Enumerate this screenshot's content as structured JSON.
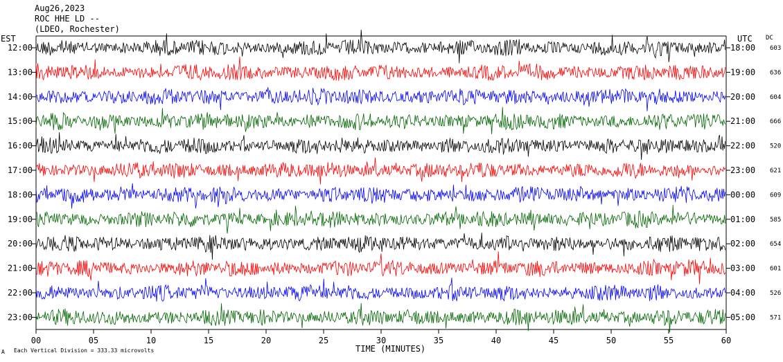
{
  "header": {
    "date": "Aug26,2023",
    "station": "ROC HHE LD --",
    "network": "(LDEO, Rochester)"
  },
  "chart_data": {
    "type": "line",
    "title": "",
    "xlabel": "TIME (MINUTES)",
    "left_axis_label": "EST",
    "right_axis_label": "UTC",
    "dc_label": "DC",
    "xlim": [
      0,
      60
    ],
    "x_ticks": [
      "00",
      "05",
      "10",
      "15",
      "20",
      "25",
      "30",
      "35",
      "40",
      "45",
      "50",
      "55",
      "60"
    ],
    "scale_note": "Each Vertical Division = 333.33 microvolts",
    "colors": [
      "#000000",
      "#ff0000",
      "#0000ff",
      "#006400"
    ],
    "rows": [
      {
        "est": "12:00",
        "utc": "18:00",
        "dc": "603"
      },
      {
        "est": "13:00",
        "utc": "19:00",
        "dc": "636"
      },
      {
        "est": "14:00",
        "utc": "20:00",
        "dc": "604"
      },
      {
        "est": "15:00",
        "utc": "21:00",
        "dc": "666"
      },
      {
        "est": "16:00",
        "utc": "22:00",
        "dc": "520"
      },
      {
        "est": "17:00",
        "utc": "23:00",
        "dc": "621"
      },
      {
        "est": "18:00",
        "utc": "00:00",
        "dc": "609"
      },
      {
        "est": "19:00",
        "utc": "01:00",
        "dc": "585"
      },
      {
        "est": "20:00",
        "utc": "02:00",
        "dc": "654"
      },
      {
        "est": "21:00",
        "utc": "03:00",
        "dc": "601"
      },
      {
        "est": "22:00",
        "utc": "04:00",
        "dc": "526"
      },
      {
        "est": "23:00",
        "utc": "05:00",
        "dc": "571"
      }
    ]
  }
}
